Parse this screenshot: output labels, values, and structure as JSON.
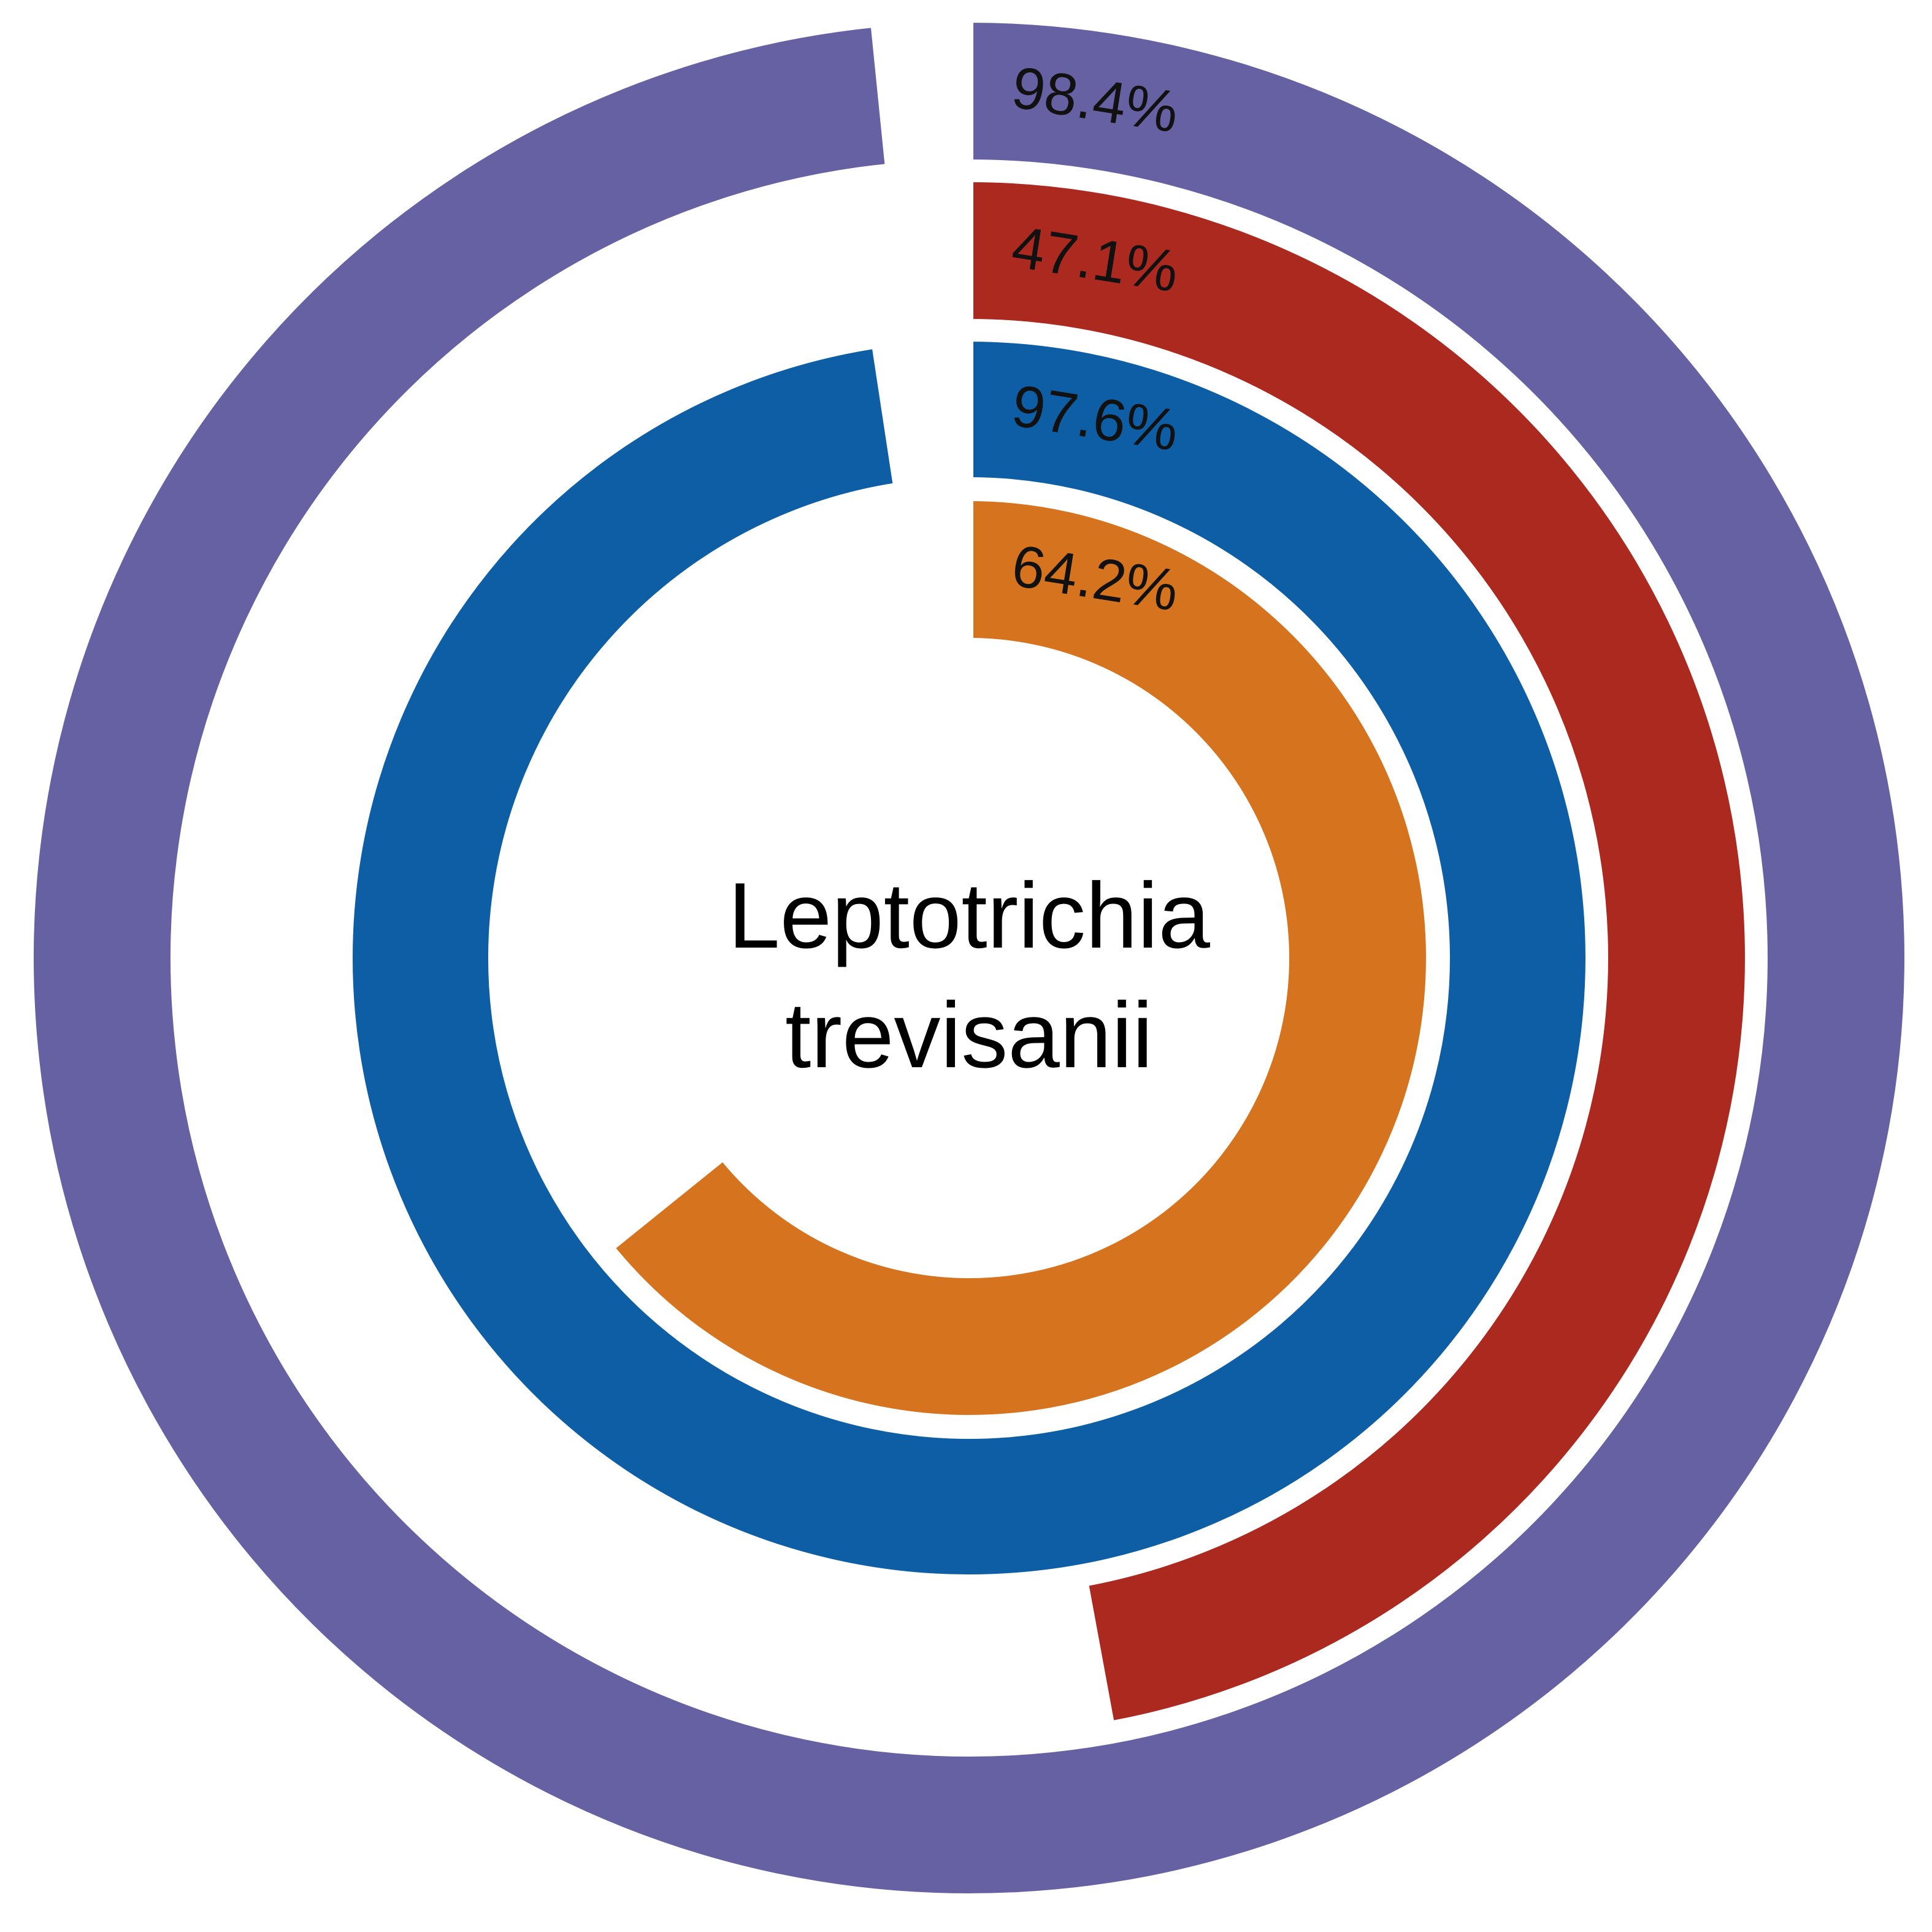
{
  "chart_data": {
    "type": "radial_bar",
    "center_label": [
      "Leptotrichia",
      "trevisanii"
    ],
    "max_value": 100,
    "rings": [
      {
        "value": 98.4,
        "label": "98.4%",
        "color": "#6661a3"
      },
      {
        "value": 47.1,
        "label": "47.1%",
        "color": "#ac2920"
      },
      {
        "value": 97.6,
        "label": "97.6%",
        "color": "#0e5ea6"
      },
      {
        "value": 64.2,
        "label": "64.2%",
        "color": "#d6731f"
      }
    ]
  }
}
